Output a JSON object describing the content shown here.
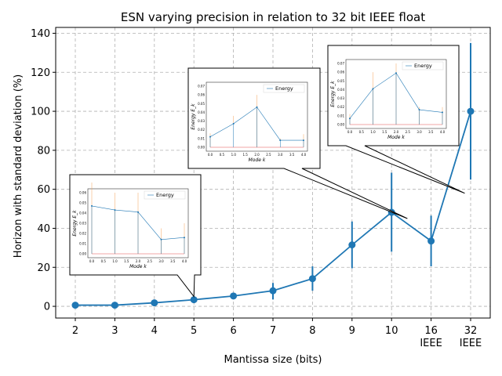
{
  "chart_data": {
    "type": "line",
    "title": "ESN varying precision in relation to 32 bit IEEE float",
    "xlabel": "Mantissa size (bits)",
    "ylabel": "Horizon with standard deviation (%)",
    "ylim": [
      -6,
      143
    ],
    "yticks": [
      0,
      20,
      40,
      60,
      80,
      100,
      120,
      140
    ],
    "grid": true,
    "categories": [
      {
        "label": "2",
        "sub": ""
      },
      {
        "label": "3",
        "sub": ""
      },
      {
        "label": "4",
        "sub": ""
      },
      {
        "label": "5",
        "sub": ""
      },
      {
        "label": "6",
        "sub": ""
      },
      {
        "label": "7",
        "sub": ""
      },
      {
        "label": "8",
        "sub": ""
      },
      {
        "label": "9",
        "sub": ""
      },
      {
        "label": "10",
        "sub": ""
      },
      {
        "label": "16",
        "sub": "IEEE"
      },
      {
        "label": "32",
        "sub": "IEEE"
      }
    ],
    "series": [
      {
        "color": "#1f77b4",
        "values": [
          0.6,
          0.6,
          1.8,
          3.4,
          5.3,
          8.0,
          14.2,
          31.5,
          48.2,
          33.5,
          100.0
        ],
        "err_low": [
          0.4,
          0.4,
          1.0,
          2.4,
          4.5,
          3.5,
          8.0,
          19.5,
          28.0,
          20.5,
          65.0
        ],
        "err_high": [
          0.9,
          0.9,
          2.6,
          4.4,
          6.1,
          12.0,
          20.5,
          43.5,
          68.5,
          46.5,
          135.0
        ]
      }
    ],
    "insets": [
      {
        "anchor_category": 3,
        "anchor_value": 5,
        "xlabel": "Mode k",
        "ylabel": "Energy E_k",
        "legend": "Energy",
        "xticks": [
          "0.0",
          "0.5",
          "1.0",
          "1.5",
          "2.0",
          "2.5",
          "3.0",
          "3.5",
          "4.0"
        ],
        "yticks": [
          "0.00",
          "0.01",
          "0.02",
          "0.03",
          "0.04",
          "0.05",
          "0.06"
        ],
        "ymax": 0.06,
        "points": [
          [
            0,
            0.047
          ],
          [
            1,
            0.043
          ],
          [
            2,
            0.041
          ],
          [
            3,
            0.014
          ],
          [
            4,
            0.016
          ]
        ],
        "stems": [
          0.07,
          0.06,
          0.06,
          0.025,
          0.03
        ]
      },
      {
        "anchor_category": 8.4,
        "anchor_value": 45,
        "xlabel": "Mode k",
        "ylabel": "Energy E_k",
        "legend": "Energy",
        "xticks": [
          "0.0",
          "0.5",
          "1.0",
          "1.5",
          "2.0",
          "2.5",
          "3.0",
          "3.5",
          "4.0"
        ],
        "yticks": [
          "0.00",
          "0.01",
          "0.02",
          "0.03",
          "0.04",
          "0.05",
          "0.06",
          "0.07"
        ],
        "ymax": 0.07,
        "points": [
          [
            0,
            0.012
          ],
          [
            1,
            0.027
          ],
          [
            2,
            0.046
          ],
          [
            3,
            0.008
          ],
          [
            4,
            0.008
          ]
        ],
        "stems": [
          0.016,
          0.036,
          0.06,
          0.01,
          0.015
        ]
      },
      {
        "anchor_category": 9.85,
        "anchor_value": 58,
        "xlabel": "Mode k",
        "ylabel": "Energy E_k",
        "legend": "Energy",
        "xticks": [
          "0.0",
          "0.5",
          "1.0",
          "1.5",
          "2.0",
          "2.5",
          "3.0",
          "3.5",
          "4.0"
        ],
        "yticks": [
          "0.00",
          "0.01",
          "0.02",
          "0.03",
          "0.04",
          "0.05",
          "0.06",
          "0.07"
        ],
        "ymax": 0.07,
        "points": [
          [
            0,
            0.007
          ],
          [
            1,
            0.041
          ],
          [
            2,
            0.059
          ],
          [
            3,
            0.017
          ],
          [
            4,
            0.014
          ]
        ],
        "stems": [
          0.012,
          0.06,
          0.07,
          0.02,
          0.02
        ]
      }
    ]
  }
}
